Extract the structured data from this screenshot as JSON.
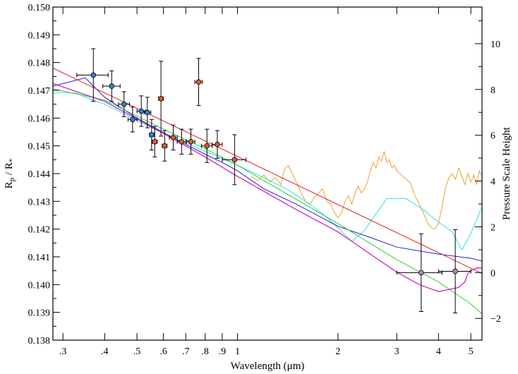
{
  "chart_data": {
    "type": "scatter",
    "title": "",
    "xlabel": "Wavelength (μm)",
    "ylabel": "Rp / R*",
    "ylabel_main": "R",
    "ylabel_sub1": "p",
    "ylabel_mid": " / R",
    "ylabel_sub2": "*",
    "y2label": "Pressure Scale Height",
    "x_scale": "log",
    "xlim": [
      0.28,
      5.4
    ],
    "ylim": [
      0.138,
      0.15
    ],
    "y2lim": [
      -2.95,
      11.6
    ],
    "x_ticks": [
      {
        "value": 0.3,
        "label": ".3"
      },
      {
        "value": 0.4,
        "label": ".4"
      },
      {
        "value": 0.5,
        "label": ".5"
      },
      {
        "value": 0.6,
        "label": ".6"
      },
      {
        "value": 0.7,
        "label": ".7"
      },
      {
        "value": 0.8,
        "label": ".8"
      },
      {
        "value": 0.9,
        "label": ".9"
      },
      {
        "value": 1.0,
        "label": "1"
      },
      {
        "value": 2.0,
        "label": "2"
      },
      {
        "value": 3.0,
        "label": "3"
      },
      {
        "value": 4.0,
        "label": "4"
      },
      {
        "value": 5.0,
        "label": "5"
      }
    ],
    "y_ticks": [
      "0.138",
      "0.139",
      "0.140",
      "0.141",
      "0.142",
      "0.143",
      "0.144",
      "0.145",
      "0.146",
      "0.147",
      "0.148",
      "0.149",
      "0.150"
    ],
    "y2_ticks": [
      "−2",
      "0",
      "2",
      "4",
      "6",
      "8",
      "10"
    ],
    "colors": {
      "blue_points": "#2f7fd8",
      "red_points": "#e0563a",
      "purple_points": "#c77fc7",
      "orange_model": "#f0a030",
      "cyan_model": "#30e0e8",
      "blue_model": "#2020d0",
      "red_model": "#e02020",
      "green_model": "#30d030",
      "magenta_model": "#d020c0"
    },
    "series": [
      {
        "name": "Blue data",
        "color_key": "blue_points",
        "points": [
          {
            "x": 0.37,
            "y": 0.14755,
            "xerr": [
              0.33,
              0.41
            ],
            "yerr": 0.00095
          },
          {
            "x": 0.42,
            "y": 0.14715,
            "xerr": [
              0.395,
              0.445
            ],
            "yerr": 0.00055
          },
          {
            "x": 0.457,
            "y": 0.1465,
            "xerr": [
              0.44,
              0.475
            ],
            "yerr": 0.00045
          },
          {
            "x": 0.485,
            "y": 0.14595,
            "xerr": [
              0.47,
              0.5
            ],
            "yerr": 0.00045
          },
          {
            "x": 0.515,
            "y": 0.14625,
            "xerr": [
              0.5,
              0.53
            ],
            "yerr": 0.00055
          },
          {
            "x": 0.537,
            "y": 0.1462,
            "xerr": [
              0.525,
              0.55
            ],
            "yerr": 0.00055
          },
          {
            "x": 0.553,
            "y": 0.1454,
            "xerr": [
              0.545,
              0.562
            ],
            "yerr": 0.00055
          }
        ]
      },
      {
        "name": "Red data",
        "color_key": "red_points",
        "points": [
          {
            "x": 0.565,
            "y": 0.14515,
            "xerr": [
              0.555,
              0.575
            ],
            "yerr": 0.00055
          },
          {
            "x": 0.59,
            "y": 0.1467,
            "xerr": [
              0.58,
              0.6
            ],
            "yerr": 0.00135
          },
          {
            "x": 0.605,
            "y": 0.145,
            "xerr": [
              0.595,
              0.615
            ],
            "yerr": 0.00055
          },
          {
            "x": 0.642,
            "y": 0.1453,
            "xerr": [
              0.625,
              0.66
            ],
            "yerr": 0.00045
          },
          {
            "x": 0.68,
            "y": 0.14515,
            "xerr": [
              0.66,
              0.7
            ],
            "yerr": 0.00045
          },
          {
            "x": 0.725,
            "y": 0.14515,
            "xerr": [
              0.705,
              0.745
            ],
            "yerr": 0.00045
          },
          {
            "x": 0.765,
            "y": 0.1473,
            "xerr": [
              0.745,
              0.785
            ],
            "yerr": 0.00085
          },
          {
            "x": 0.81,
            "y": 0.145,
            "xerr": [
              0.78,
              0.84
            ],
            "yerr": 0.0006
          },
          {
            "x": 0.87,
            "y": 0.14505,
            "xerr": [
              0.84,
              0.9
            ],
            "yerr": 0.0005
          },
          {
            "x": 0.98,
            "y": 0.1445,
            "xerr": [
              0.9,
              1.06
            ],
            "yerr": 0.0009
          }
        ]
      },
      {
        "name": "Purple data",
        "color_key": "purple_points",
        "points": [
          {
            "x": 3.55,
            "y": 0.14043,
            "xerr": [
              3.0,
              4.1
            ],
            "yerr": 0.0014
          },
          {
            "x": 4.49,
            "y": 0.14048,
            "xerr": [
              4.0,
              5.0
            ],
            "yerr": 0.0015
          }
        ]
      }
    ],
    "models": [
      {
        "name": "orange",
        "color_key": "orange_model",
        "width": 1.0,
        "points": [
          [
            1.1,
            0.1439
          ],
          [
            1.15,
            0.14375
          ],
          [
            1.2,
            0.14395
          ],
          [
            1.25,
            0.1437
          ],
          [
            1.3,
            0.14385
          ],
          [
            1.35,
            0.1436
          ],
          [
            1.38,
            0.14415
          ],
          [
            1.42,
            0.1443
          ],
          [
            1.46,
            0.144
          ],
          [
            1.5,
            0.1437
          ],
          [
            1.55,
            0.1433
          ],
          [
            1.6,
            0.143
          ],
          [
            1.65,
            0.1429
          ],
          [
            1.7,
            0.14315
          ],
          [
            1.75,
            0.1433
          ],
          [
            1.8,
            0.14345
          ],
          [
            1.85,
            0.143
          ],
          [
            1.9,
            0.1429
          ],
          [
            1.95,
            0.1426
          ],
          [
            2.0,
            0.1424
          ],
          [
            2.05,
            0.1426
          ],
          [
            2.1,
            0.143
          ],
          [
            2.15,
            0.1432
          ],
          [
            2.2,
            0.1429
          ],
          [
            2.25,
            0.1433
          ],
          [
            2.3,
            0.14355
          ],
          [
            2.35,
            0.1433
          ],
          [
            2.4,
            0.14345
          ],
          [
            2.45,
            0.1437
          ],
          [
            2.5,
            0.1441
          ],
          [
            2.55,
            0.1444
          ],
          [
            2.6,
            0.1442
          ],
          [
            2.65,
            0.1446
          ],
          [
            2.7,
            0.14445
          ],
          [
            2.75,
            0.1448
          ],
          [
            2.8,
            0.1444
          ],
          [
            2.85,
            0.1445
          ],
          [
            2.9,
            0.1442
          ],
          [
            2.95,
            0.1443
          ],
          [
            3.0,
            0.1441
          ],
          [
            3.1,
            0.14395
          ],
          [
            3.2,
            0.1438
          ],
          [
            3.3,
            0.14365
          ],
          [
            3.4,
            0.1432
          ],
          [
            3.5,
            0.1429
          ],
          [
            3.6,
            0.1426
          ],
          [
            3.7,
            0.14225
          ],
          [
            3.8,
            0.14205
          ],
          [
            3.9,
            0.142
          ],
          [
            4.0,
            0.1422
          ],
          [
            4.1,
            0.1428
          ],
          [
            4.2,
            0.1435
          ],
          [
            4.3,
            0.14385
          ],
          [
            4.4,
            0.144
          ],
          [
            4.5,
            0.1438
          ],
          [
            4.6,
            0.1442
          ],
          [
            4.7,
            0.1439
          ],
          [
            4.8,
            0.1436
          ],
          [
            4.9,
            0.144
          ],
          [
            5.0,
            0.1437
          ],
          [
            5.1,
            0.14395
          ],
          [
            5.2,
            0.1436
          ],
          [
            5.3,
            0.1441
          ],
          [
            5.4,
            0.1439
          ]
        ]
      },
      {
        "name": "cyan",
        "color_key": "cyan_model",
        "width": 1.0,
        "points": [
          [
            0.28,
            0.1469
          ],
          [
            0.3,
            0.14692
          ],
          [
            0.33,
            0.1469
          ],
          [
            0.35,
            0.14675
          ],
          [
            0.4,
            0.1465
          ],
          [
            0.45,
            0.1462
          ],
          [
            0.5,
            0.1459
          ],
          [
            0.6,
            0.14545
          ],
          [
            0.7,
            0.1451
          ],
          [
            0.8,
            0.1448
          ],
          [
            0.9,
            0.14455
          ],
          [
            1.0,
            0.1443
          ],
          [
            1.2,
            0.14385
          ],
          [
            1.4,
            0.14345
          ],
          [
            1.6,
            0.143
          ],
          [
            1.8,
            0.14255
          ],
          [
            2.0,
            0.14205
          ],
          [
            2.2,
            0.14155
          ],
          [
            2.4,
            0.14195
          ],
          [
            2.6,
            0.14255
          ],
          [
            2.8,
            0.1431
          ],
          [
            3.2,
            0.1431
          ],
          [
            3.6,
            0.1427
          ],
          [
            4.0,
            0.14225
          ],
          [
            4.4,
            0.1419
          ],
          [
            4.7,
            0.14125
          ],
          [
            5.0,
            0.14185
          ],
          [
            5.4,
            0.1428
          ]
        ]
      },
      {
        "name": "blue",
        "color_key": "blue_model",
        "width": 1.0,
        "points": [
          [
            0.28,
            0.14715
          ],
          [
            0.35,
            0.14745
          ],
          [
            0.4,
            0.14675
          ],
          [
            0.5,
            0.146
          ],
          [
            0.6,
            0.14548
          ],
          [
            0.7,
            0.14505
          ],
          [
            0.8,
            0.1447
          ],
          [
            0.9,
            0.1444
          ],
          [
            1.0,
            0.1441
          ],
          [
            1.2,
            0.14345
          ],
          [
            1.5,
            0.1429
          ],
          [
            2.0,
            0.1421
          ],
          [
            2.5,
            0.1417
          ],
          [
            3.0,
            0.14135
          ],
          [
            4.0,
            0.1411
          ],
          [
            5.0,
            0.14095
          ],
          [
            5.4,
            0.14085
          ]
        ]
      },
      {
        "name": "red",
        "color_key": "red_model",
        "width": 1.0,
        "points": [
          [
            0.28,
            0.1478
          ],
          [
            5.4,
            0.1404
          ]
        ]
      },
      {
        "name": "green",
        "color_key": "green_model",
        "width": 1.0,
        "points": [
          [
            0.28,
            0.14705
          ],
          [
            0.4,
            0.14665
          ],
          [
            0.6,
            0.1456
          ],
          [
            0.8,
            0.1449
          ],
          [
            1.0,
            0.1443
          ],
          [
            2.0,
            0.1422
          ],
          [
            3.0,
            0.1409
          ],
          [
            4.0,
            0.1401
          ],
          [
            5.0,
            0.1393
          ],
          [
            5.4,
            0.13895
          ]
        ]
      },
      {
        "name": "magenta",
        "color_key": "magenta_model",
        "width": 1.3,
        "points": [
          [
            0.28,
            0.14725
          ],
          [
            0.4,
            0.1466
          ],
          [
            0.6,
            0.14545
          ],
          [
            0.8,
            0.1446
          ],
          [
            1.0,
            0.1439
          ],
          [
            1.5,
            0.1427
          ],
          [
            2.0,
            0.1419
          ],
          [
            2.5,
            0.1411
          ],
          [
            3.0,
            0.14045
          ],
          [
            3.5,
            0.14
          ],
          [
            4.0,
            0.13975
          ],
          [
            4.4,
            0.13985
          ],
          [
            4.6,
            0.1399
          ],
          [
            4.8,
            0.1401
          ],
          [
            4.9,
            0.1404
          ],
          [
            5.0,
            0.1405
          ],
          [
            5.1,
            0.14055
          ],
          [
            5.2,
            0.1406
          ],
          [
            5.4,
            0.1406
          ]
        ]
      }
    ]
  }
}
